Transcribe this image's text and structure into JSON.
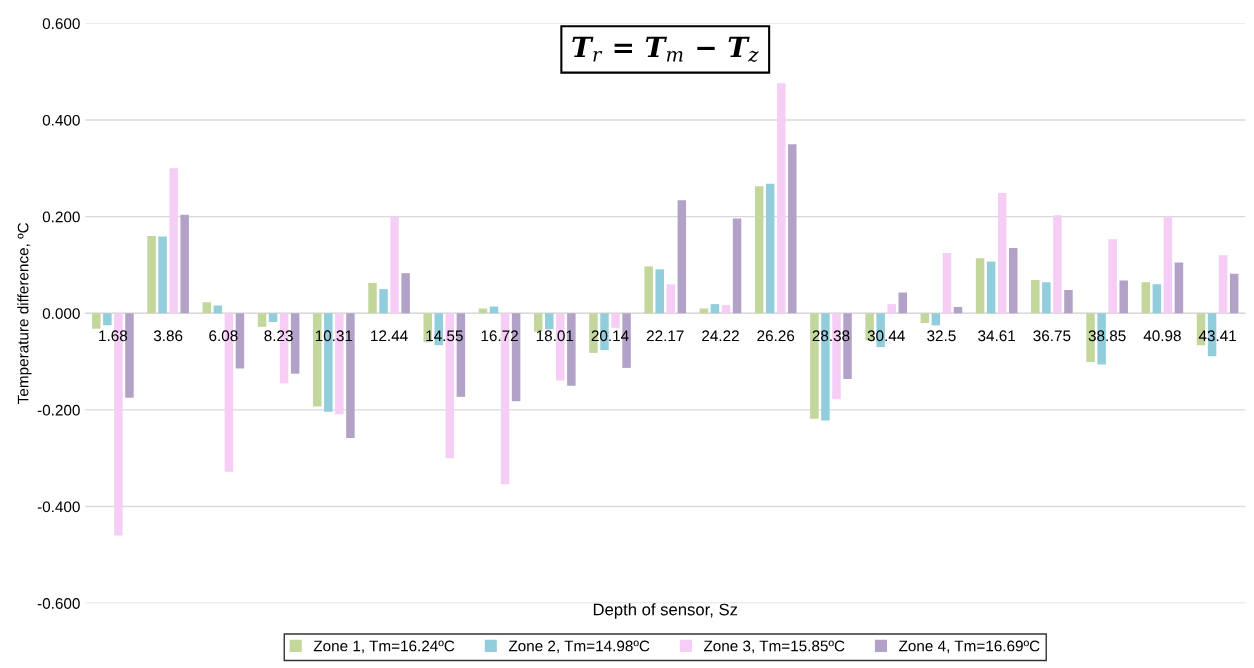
{
  "chart_data": {
    "type": "bar",
    "title": "T$_{r}$ = T$_{m}$ − T$_{z}$",
    "xlabel": "Depth of sensor, Sz",
    "ylabel": "Temperature difference, ºC",
    "categories": [
      "1.68",
      "3.86",
      "6.08",
      "8.23",
      "10.31",
      "12.44",
      "14.55",
      "16.72",
      "18.01",
      "20.14",
      "22.17",
      "24.22",
      "26.26",
      "28.38",
      "30.44",
      "32.5",
      "34.61",
      "36.75",
      "38.85",
      "40.98",
      "43.41"
    ],
    "series": [
      {
        "name": "Zone 1, Tm=16.24ºC",
        "color": "#c3d69b",
        "values": [
          -0.032,
          0.16,
          0.023,
          -0.028,
          -0.193,
          0.063,
          -0.06,
          0.01,
          -0.038,
          -0.082,
          0.097,
          0.01,
          0.263,
          -0.218,
          -0.056,
          -0.02,
          0.114,
          0.069,
          -0.101,
          0.064,
          -0.066
        ]
      },
      {
        "name": "Zone 2, Tm=14.98ºC",
        "color": "#92cddc",
        "values": [
          -0.025,
          0.159,
          0.016,
          -0.018,
          -0.204,
          0.05,
          -0.066,
          0.014,
          -0.033,
          -0.076,
          0.091,
          0.019,
          0.268,
          -0.222,
          -0.07,
          -0.025,
          0.107,
          0.064,
          -0.106,
          0.06,
          -0.089
        ]
      },
      {
        "name": "Zone 3, Tm=15.85ºC",
        "color": "#f5cdf5",
        "values": [
          -0.46,
          0.3,
          -0.328,
          -0.145,
          -0.209,
          0.2,
          -0.3,
          -0.354,
          -0.139,
          -0.03,
          0.06,
          0.017,
          0.476,
          -0.178,
          0.019,
          0.125,
          0.249,
          0.203,
          0.153,
          0.199,
          0.12
        ]
      },
      {
        "name": "Zone 4, Tm=16.69ºC",
        "color": "#b3a2c7",
        "values": [
          -0.175,
          0.204,
          -0.114,
          -0.125,
          -0.258,
          0.083,
          -0.173,
          -0.182,
          -0.15,
          -0.113,
          0.234,
          0.196,
          0.35,
          -0.136,
          0.043,
          0.013,
          0.135,
          0.048,
          0.068,
          0.105,
          0.082
        ]
      }
    ],
    "ylim": [
      -0.6,
      0.6
    ],
    "yticks": [
      {
        "value": -0.6,
        "label": "-0.600"
      },
      {
        "value": -0.4,
        "label": "-0.400"
      },
      {
        "value": -0.2,
        "label": "-0.200"
      },
      {
        "value": 0,
        "label": "0.000"
      },
      {
        "value": 0.2,
        "label": "0.200"
      },
      {
        "value": 0.4,
        "label": "0.400"
      },
      {
        "value": 0.6,
        "label": "0.600"
      }
    ],
    "grid": "y",
    "legend": "bottom"
  }
}
